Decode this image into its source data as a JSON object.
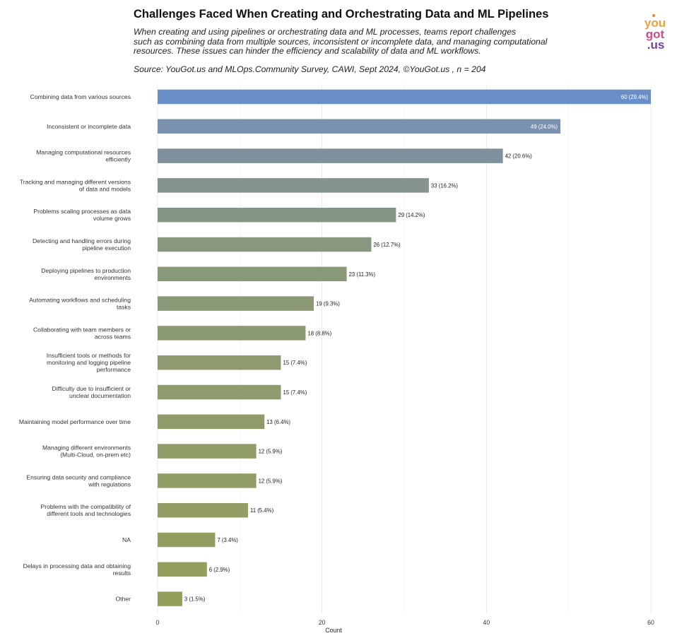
{
  "header": {
    "title": "Challenges Faced When Creating and Orchestrating Data and ML Pipelines",
    "subtitle_lines": [
      "When creating and using pipelines or orchestrating data and ML processes, teams report challenges",
      "such as combining data from multiple sources, inconsistent or incomplete data, and managing computational",
      "resources. These issues can hinder the efficiency and scalability of data and ML workflows."
    ],
    "source": "Source: YouGot.us and MLOps.Community Survey, CAWI, Sept 2024, ©YouGot.us , n = 204"
  },
  "logo": {
    "line1": "you",
    "line2": "got",
    "line3": ".us",
    "colors": [
      "#f5a623",
      "#d63384",
      "#7b3fa0"
    ]
  },
  "chart_data": {
    "type": "bar",
    "orientation": "horizontal",
    "categories": [
      "Combining data from various sources",
      "Inconsistent or incomplete data",
      "Managing computational resources efficiently",
      "Tracking and managing different versions of data and models",
      "Problems scaling processes as data volume grows",
      "Detecting and handling errors during pipeline execution",
      "Deploying pipelines to production environments",
      "Automating workflows and scheduling tasks",
      "Collaborating with team members or across teams",
      "Insufficient tools or methods for monitoring and logging pipeline performance",
      "Difficulty due to insufficient or unclear documentation",
      "Maintaining model performance over time",
      "Managing different environments (Multi-Cloud, on-prem etc)",
      "Ensuring data security and compliance with regulations",
      "Problems with the compatibility of different tools and technologies",
      "NA",
      "Delays in processing data and obtaining results",
      "Other"
    ],
    "category_label_lines": [
      [
        "Combining data from various sources"
      ],
      [
        "Inconsistent or incomplete data"
      ],
      [
        "Managing computational resources",
        "efficiently"
      ],
      [
        "Tracking and managing different versions",
        "of data and models"
      ],
      [
        "Problems scaling processes as data",
        "volume grows"
      ],
      [
        "Detecting and handling errors during",
        "pipeline execution"
      ],
      [
        "Deploying pipelines to production",
        "environments"
      ],
      [
        "Automating workflows and scheduling",
        "tasks"
      ],
      [
        "Collaborating with team members or",
        "across teams"
      ],
      [
        "Insufficient tools or methods for",
        "monitoring and logging pipeline",
        "performance"
      ],
      [
        "Difficulty due to insufficient or",
        "unclear documentation"
      ],
      [
        "Maintaining model performance over time"
      ],
      [
        "Managing different environments",
        "(Multi-Cloud, on-prem etc)"
      ],
      [
        "Ensuring data security and compliance",
        "with regulations"
      ],
      [
        "Problems with the compatibility of",
        "different tools and technologies"
      ],
      [
        "NA"
      ],
      [
        "Delays in processing data and obtaining",
        "results"
      ],
      [
        "Other"
      ]
    ],
    "values": [
      60,
      49,
      42,
      33,
      29,
      26,
      23,
      19,
      18,
      15,
      15,
      13,
      12,
      12,
      11,
      7,
      6,
      3
    ],
    "data_labels": [
      "60 (29.4%)",
      "49 (24.0%)",
      "42 (20.6%)",
      "33 (16.2%)",
      "29 (14.2%)",
      "26 (12.7%)",
      "23 (11.3%)",
      "19 (9.3%)",
      "18 (8.8%)",
      "15 (7.4%)",
      "15 (7.4%)",
      "13 (6.4%)",
      "12 (5.9%)",
      "12 (5.9%)",
      "11 (5.4%)",
      "7 (3.4%)",
      "6 (2.9%)",
      "3 (1.5%)"
    ],
    "bar_colors": [
      "#6a8fc8",
      "#7a92b0",
      "#7e919d",
      "#859491",
      "#869685",
      "#889780",
      "#8a987a",
      "#8b9977",
      "#8c9a73",
      "#8e9b70",
      "#8e9b6d",
      "#8f9c6a",
      "#909c68",
      "#919d66",
      "#919d63",
      "#929e60",
      "#939e5d",
      "#949f5a"
    ],
    "xlabel": "Count",
    "ylabel": "",
    "xlim": [
      0,
      60
    ],
    "xticks": [
      0,
      20,
      40,
      60
    ],
    "grid": true
  }
}
